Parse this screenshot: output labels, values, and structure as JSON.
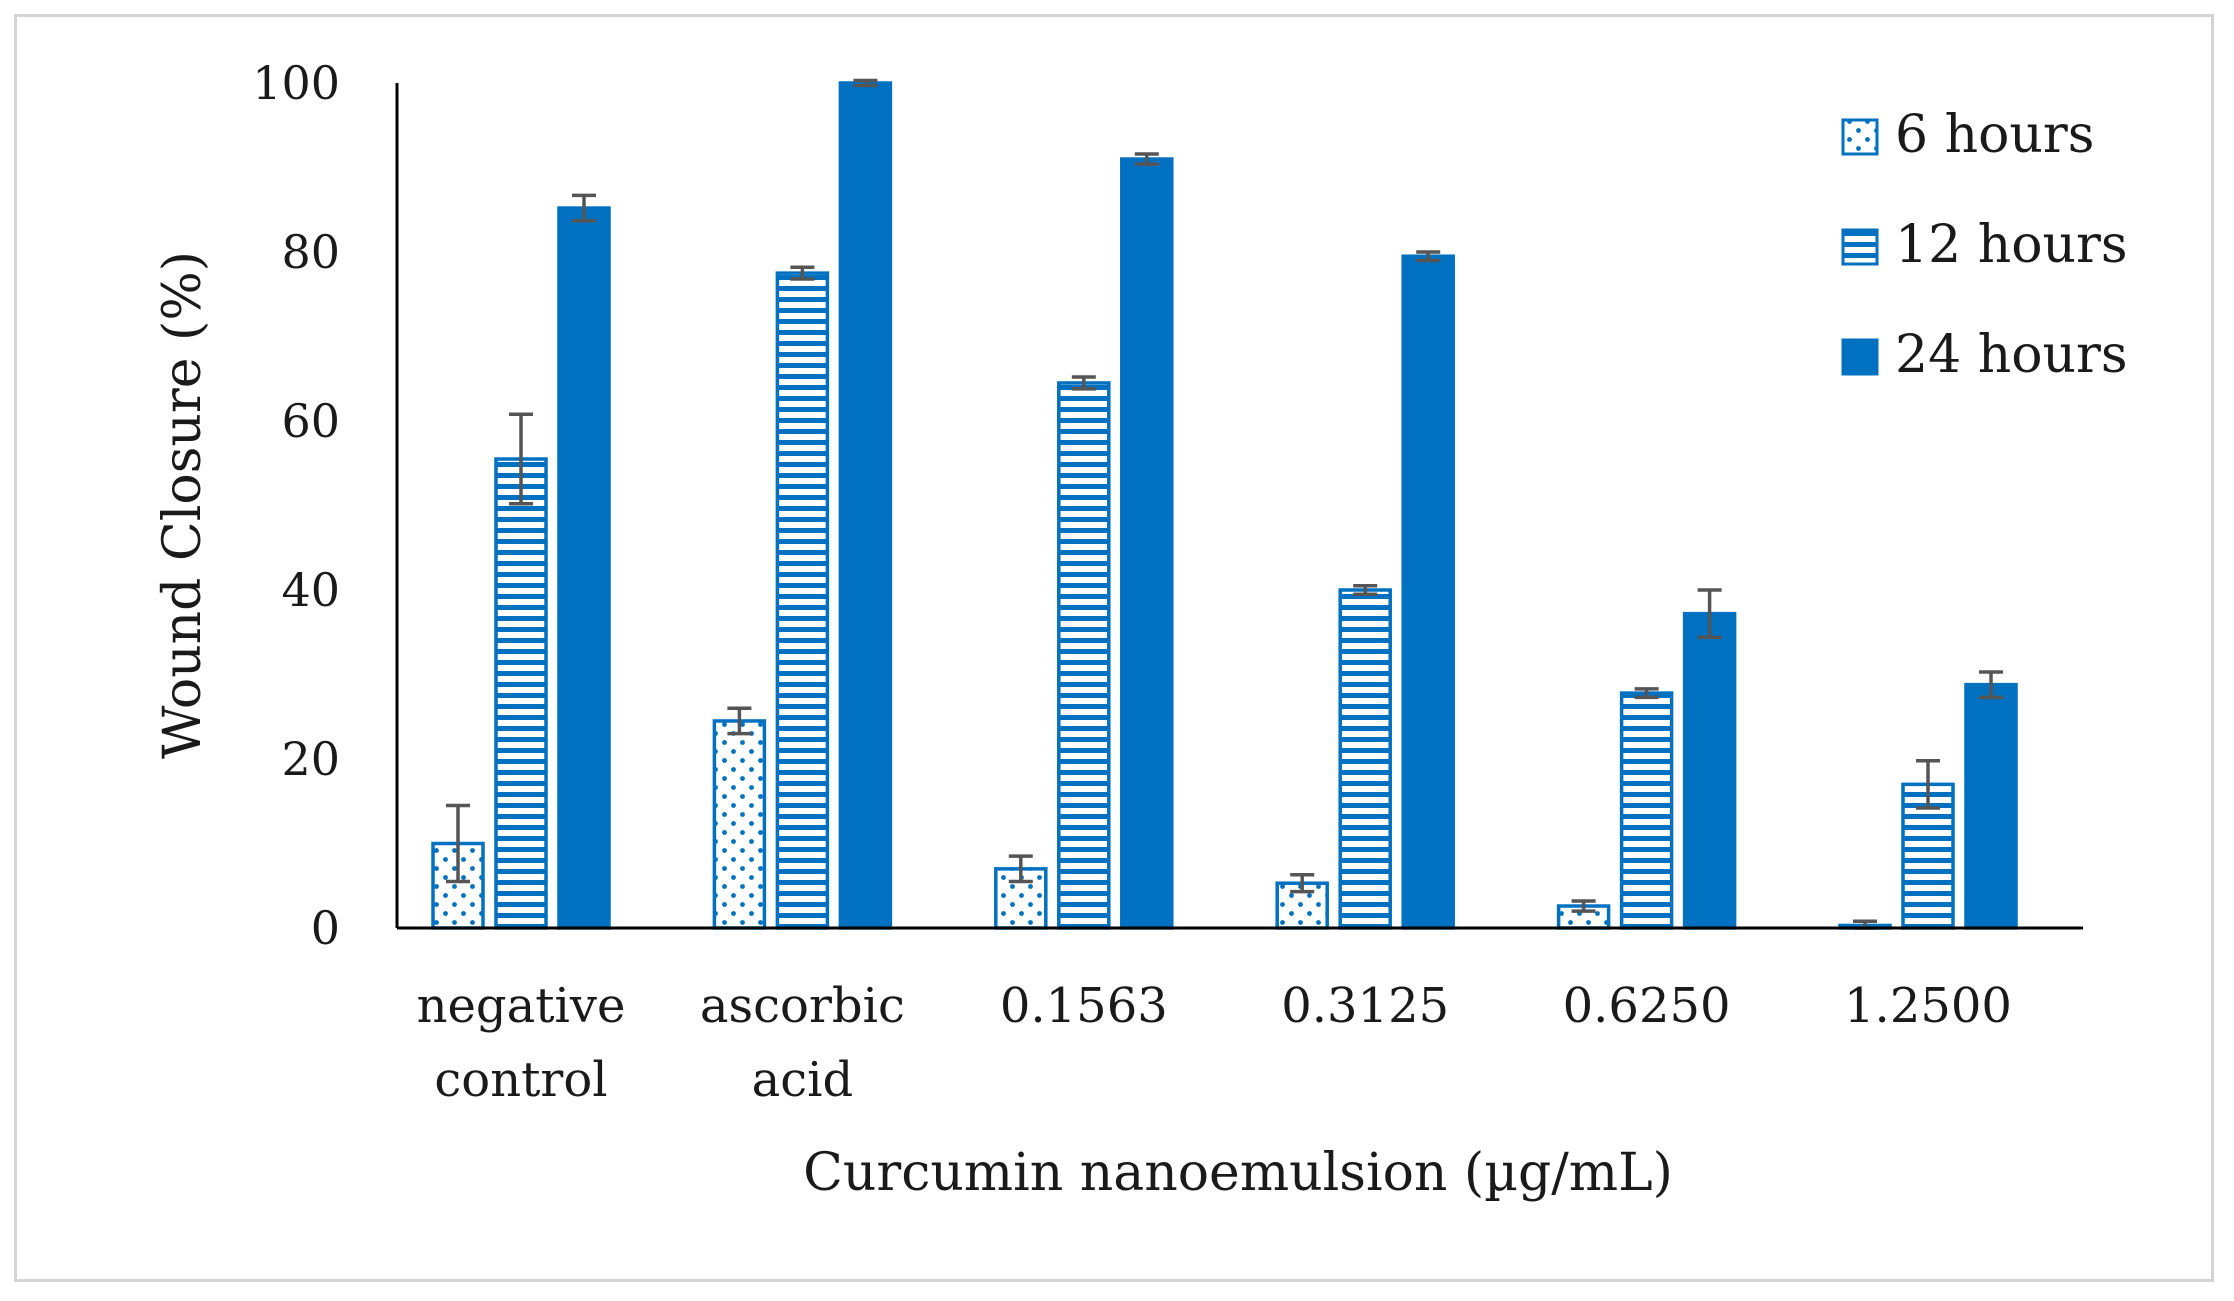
{
  "chart_data": {
    "type": "bar",
    "title": "",
    "xlabel": "Curcumin nanoemulsion (µg/mL)",
    "ylabel": "Wound Closure (%)",
    "ylim": [
      0,
      100
    ],
    "yticks": [
      0,
      20,
      40,
      60,
      80,
      100
    ],
    "grid": false,
    "legend_position": "top-right",
    "categories": [
      [
        "negative",
        "control"
      ],
      [
        "ascorbic",
        "acid"
      ],
      [
        "0.1563"
      ],
      [
        "0.3125"
      ],
      [
        "0.6250"
      ],
      [
        "1.2500"
      ]
    ],
    "series": [
      {
        "name": "6 hours",
        "pattern": "dots",
        "values": [
          10,
          24.5,
          7,
          5.3,
          2.6,
          0.3
        ],
        "errors": [
          4.5,
          1.5,
          1.5,
          1.0,
          0.6,
          0.5
        ]
      },
      {
        "name": "12 hours",
        "pattern": "horizontal-stripes",
        "values": [
          55.5,
          77.5,
          64.5,
          40,
          27.8,
          17
        ],
        "errors": [
          5.3,
          0.7,
          0.7,
          0.5,
          0.5,
          2.8
        ]
      },
      {
        "name": "24 hours",
        "pattern": "solid",
        "values": [
          85.2,
          100,
          91,
          79.5,
          37.2,
          28.8
        ],
        "errors": [
          1.5,
          0.3,
          0.6,
          0.5,
          2.8,
          1.5
        ]
      }
    ]
  },
  "colors": {
    "bar": "#0070c0",
    "error_bar": "#555555",
    "axis": "#000000",
    "text": "#1a1a1a",
    "frame": "#d4d4d4"
  }
}
